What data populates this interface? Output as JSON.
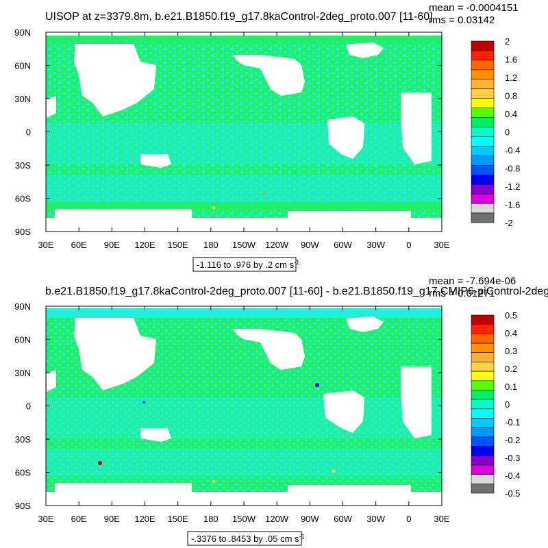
{
  "colors": {
    "land": "#ffffff",
    "zero_band": "#22ee66",
    "neg_band": "#22eedd",
    "frame": "#000000"
  },
  "chart_data": [
    {
      "type": "heatmap",
      "title": "UISOP at z=3379.8m, b.e21.B1850.f19_g17.8kaControl-2deg_proto.007 [11-60]",
      "stats": {
        "mean": "mean = -0.0004151",
        "rms": "rms = 0.03142"
      },
      "xticks": [
        "30E",
        "60E",
        "90E",
        "120E",
        "150E",
        "180",
        "150W",
        "120W",
        "90W",
        "60W",
        "30W",
        "0",
        "30E"
      ],
      "yticks": [
        "90N",
        "60N",
        "30N",
        "0",
        "30S",
        "60S",
        "90S"
      ],
      "xlim": [
        30,
        390
      ],
      "ylim": [
        -90,
        90
      ],
      "contour_info": "-1.116 to .976 by .2 cm s",
      "contour_info_exp": "-1",
      "colorbar": {
        "labels": [
          "2",
          "1.6",
          "1.2",
          "0.8",
          "0.4",
          "0",
          "-0.4",
          "-0.8",
          "-1.2",
          "-1.6",
          "-2"
        ],
        "colors": [
          "#c00000",
          "#ff2200",
          "#ff6600",
          "#ff9000",
          "#ffb030",
          "#ffd040",
          "#ffff00",
          "#55ff00",
          "#00ee66",
          "#00ffcc",
          "#00ffff",
          "#00ccff",
          "#0099ff",
          "#0055ff",
          "#0000ee",
          "#8800cc",
          "#dd00dd",
          "#d8d8d8",
          "#707070"
        ]
      }
    },
    {
      "type": "heatmap",
      "title": "b.e21.B1850.f19_g17.8kaControl-2deg_proto.007 [11-60] - b.e21.B1850.f19_g17.CMIP6-piControl-2deg",
      "stats": {
        "mean": "mean = -7.694e-06",
        "rms": "rms = 0.01271"
      },
      "xticks": [
        "30E",
        "60E",
        "90E",
        "120E",
        "150E",
        "180",
        "150W",
        "120W",
        "90W",
        "60W",
        "30W",
        "0",
        "30E"
      ],
      "yticks": [
        "90N",
        "60N",
        "30N",
        "0",
        "30S",
        "60S",
        "90S"
      ],
      "xlim": [
        30,
        390
      ],
      "ylim": [
        -90,
        90
      ],
      "contour_info": "-.3376 to .8453 by .05 cm s",
      "contour_info_exp": "-1",
      "colorbar": {
        "labels": [
          "0.5",
          "0.4",
          "0.3",
          "0.2",
          "0.1",
          "0",
          "-0.1",
          "-0.2",
          "-0.3",
          "-0.4",
          "-0.5"
        ],
        "colors": [
          "#c00000",
          "#ff2200",
          "#ff6600",
          "#ff9000",
          "#ffb030",
          "#ffd040",
          "#ffff00",
          "#55ff00",
          "#00ee66",
          "#00ffcc",
          "#00ffff",
          "#00ccff",
          "#0099ff",
          "#0055ff",
          "#0000ee",
          "#8800cc",
          "#dd00dd",
          "#d8d8d8",
          "#707070"
        ]
      }
    }
  ]
}
